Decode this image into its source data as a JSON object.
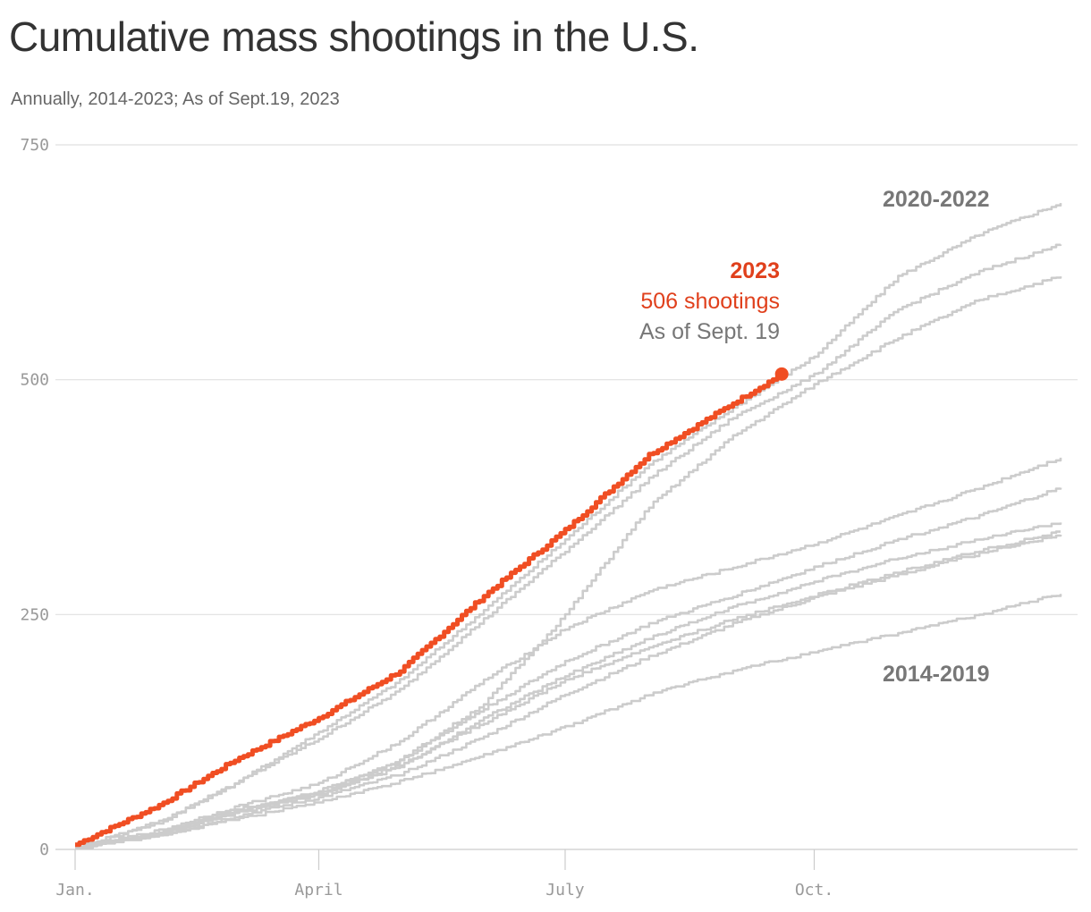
{
  "title": "Cumulative mass shootings in the U.S.",
  "subtitle": "Annually, 2014-2023; As of Sept.19, 2023",
  "colors": {
    "highlight": "#f04e23",
    "highlight_text": "#e0401c",
    "other": "#cccccc",
    "grid": "#e0e0e0",
    "axis_text": "#999999",
    "label_text": "#777777"
  },
  "chart_data": {
    "type": "line",
    "title": "Cumulative mass shootings in the U.S.",
    "subtitle": "Annually, 2014-2023; As of Sept.19, 2023",
    "x_tick_labels": [
      "Jan.",
      "April",
      "July",
      "Oct."
    ],
    "x_tick_dates": [
      "Jan 1",
      "Apr 1",
      "Jul 1",
      "Oct 1"
    ],
    "ylim": [
      0,
      750
    ],
    "y_ticks": [
      0,
      250,
      500,
      750
    ],
    "grid": true,
    "group_labels": [
      "2020-2022",
      "2014-2019"
    ],
    "annotation": {
      "year": "2023",
      "count": "506 shootings",
      "date": "As of Sept. 19"
    },
    "series": [
      {
        "name": "2023",
        "highlight": true,
        "points": [
          [
            "Jan 1",
            5
          ],
          [
            "Feb 1",
            47
          ],
          [
            "Mar 1",
            95
          ],
          [
            "Apr 1",
            140
          ],
          [
            "May 1",
            190
          ],
          [
            "Jun 1",
            270
          ],
          [
            "Jul 1",
            340
          ],
          [
            "Aug 1",
            420
          ],
          [
            "Sep 1",
            475
          ],
          [
            "Sep 19",
            506
          ]
        ]
      },
      {
        "highlight": false,
        "points": [
          [
            "Jan 1",
            2
          ],
          [
            "Feb 1",
            30
          ],
          [
            "Mar 1",
            70
          ],
          [
            "Apr 1",
            125
          ],
          [
            "May 1",
            180
          ],
          [
            "Jun 1",
            255
          ],
          [
            "Jul 1",
            330
          ],
          [
            "Aug 1",
            410
          ],
          [
            "Sep 1",
            470
          ],
          [
            "Oct 1",
            525
          ],
          [
            "Nov 1",
            610
          ],
          [
            "Dec 1",
            655
          ],
          [
            "Dec 31",
            688
          ]
        ]
      },
      {
        "highlight": false,
        "points": [
          [
            "Jan 1",
            1
          ],
          [
            "Feb 1",
            28
          ],
          [
            "Mar 1",
            70
          ],
          [
            "Apr 1",
            118
          ],
          [
            "May 1",
            170
          ],
          [
            "Jun 1",
            245
          ],
          [
            "Jul 1",
            318
          ],
          [
            "Aug 1",
            395
          ],
          [
            "Sep 1",
            460
          ],
          [
            "Oct 1",
            505
          ],
          [
            "Nov 1",
            575
          ],
          [
            "Dec 1",
            615
          ],
          [
            "Dec 31",
            644
          ]
        ]
      },
      {
        "highlight": false,
        "points": [
          [
            "Jan 1",
            1
          ],
          [
            "Feb 1",
            18
          ],
          [
            "Mar 1",
            42
          ],
          [
            "Apr 1",
            60
          ],
          [
            "May 1",
            95
          ],
          [
            "Jun 1",
            155
          ],
          [
            "Jul 1",
            250
          ],
          [
            "Aug 1",
            365
          ],
          [
            "Sep 1",
            440
          ],
          [
            "Oct 1",
            495
          ],
          [
            "Nov 1",
            545
          ],
          [
            "Dec 1",
            585
          ],
          [
            "Dec 31",
            610
          ]
        ]
      },
      {
        "highlight": false,
        "points": [
          [
            "Jan 1",
            1
          ],
          [
            "Feb 1",
            20
          ],
          [
            "Mar 1",
            45
          ],
          [
            "Apr 1",
            70
          ],
          [
            "May 1",
            115
          ],
          [
            "Jun 1",
            180
          ],
          [
            "Jul 1",
            235
          ],
          [
            "Aug 1",
            275
          ],
          [
            "Sep 1",
            300
          ],
          [
            "Oct 1",
            325
          ],
          [
            "Nov 1",
            355
          ],
          [
            "Dec 1",
            385
          ],
          [
            "Dec 31",
            417
          ]
        ]
      },
      {
        "highlight": false,
        "points": [
          [
            "Jan 1",
            1
          ],
          [
            "Feb 1",
            18
          ],
          [
            "Mar 1",
            40
          ],
          [
            "Apr 1",
            62
          ],
          [
            "May 1",
            95
          ],
          [
            "Jun 1",
            150
          ],
          [
            "Jul 1",
            200
          ],
          [
            "Aug 1",
            240
          ],
          [
            "Sep 1",
            270
          ],
          [
            "Oct 1",
            300
          ],
          [
            "Nov 1",
            330
          ],
          [
            "Dec 1",
            355
          ],
          [
            "Dec 31",
            385
          ]
        ]
      },
      {
        "highlight": false,
        "points": [
          [
            "Jan 1",
            1
          ],
          [
            "Feb 1",
            16
          ],
          [
            "Mar 1",
            38
          ],
          [
            "Apr 1",
            58
          ],
          [
            "May 1",
            88
          ],
          [
            "Jun 1",
            140
          ],
          [
            "Jul 1",
            185
          ],
          [
            "Aug 1",
            225
          ],
          [
            "Sep 1",
            258
          ],
          [
            "Oct 1",
            285
          ],
          [
            "Nov 1",
            310
          ],
          [
            "Dec 1",
            330
          ],
          [
            "Dec 31",
            348
          ]
        ]
      },
      {
        "highlight": false,
        "points": [
          [
            "Jan 1",
            1
          ],
          [
            "Feb 1",
            17
          ],
          [
            "Mar 1",
            40
          ],
          [
            "Apr 1",
            60
          ],
          [
            "May 1",
            90
          ],
          [
            "Jun 1",
            135
          ],
          [
            "Jul 1",
            180
          ],
          [
            "Aug 1",
            215
          ],
          [
            "Sep 1",
            245
          ],
          [
            "Oct 1",
            270
          ],
          [
            "Nov 1",
            295
          ],
          [
            "Dec 1",
            318
          ],
          [
            "Dec 31",
            338
          ]
        ]
      },
      {
        "highlight": false,
        "points": [
          [
            "Jan 1",
            1
          ],
          [
            "Feb 1",
            15
          ],
          [
            "Mar 1",
            35
          ],
          [
            "Apr 1",
            55
          ],
          [
            "May 1",
            80
          ],
          [
            "Jun 1",
            120
          ],
          [
            "Jul 1",
            165
          ],
          [
            "Aug 1",
            205
          ],
          [
            "Sep 1",
            240
          ],
          [
            "Oct 1",
            268
          ],
          [
            "Nov 1",
            292
          ],
          [
            "Dec 1",
            315
          ],
          [
            "Dec 31",
            335
          ]
        ]
      },
      {
        "highlight": false,
        "points": [
          [
            "Jan 1",
            1
          ],
          [
            "Feb 1",
            14
          ],
          [
            "Mar 1",
            32
          ],
          [
            "Apr 1",
            50
          ],
          [
            "May 1",
            72
          ],
          [
            "Jun 1",
            100
          ],
          [
            "Jul 1",
            130
          ],
          [
            "Aug 1",
            165
          ],
          [
            "Sep 1",
            190
          ],
          [
            "Oct 1",
            210
          ],
          [
            "Nov 1",
            230
          ],
          [
            "Dec 1",
            250
          ],
          [
            "Dec 31",
            272
          ]
        ]
      }
    ]
  }
}
